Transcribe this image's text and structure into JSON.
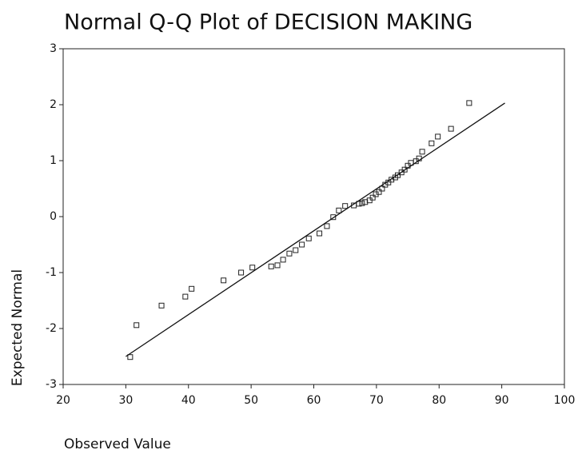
{
  "chart_data": {
    "type": "scatter",
    "title": "Normal Q-Q Plot of DECISION MAKING",
    "x_label": "Observed Value",
    "y_label": "Expected Normal",
    "xlim": [
      20,
      100
    ],
    "xticks": [
      20,
      30,
      40,
      50,
      60,
      70,
      80,
      90,
      100
    ],
    "ylim": [
      -3,
      3
    ],
    "yticks": [
      -3,
      -2,
      -1,
      0,
      1,
      2,
      3
    ],
    "series": [
      {
        "kind": "points",
        "marker": "square",
        "color": "#222",
        "x": [
          30.7,
          31.7,
          35.7,
          39.5,
          40.5,
          45.6,
          48.4,
          50.2,
          53.2,
          54.2,
          55.1,
          56.1,
          57.1,
          58.1,
          59.2,
          60.9,
          62.1,
          63.1,
          64.0,
          65.0,
          66.4,
          67.2,
          67.7,
          68.2,
          68.9,
          69.4,
          69.9,
          70.4,
          70.9,
          71.4,
          71.9,
          72.4,
          73.0,
          73.4,
          74.0,
          74.5,
          75.0,
          75.5,
          76.3,
          76.8,
          77.3,
          78.8,
          79.8,
          81.9,
          84.8
        ],
        "values": [
          -2.51,
          -1.94,
          -1.59,
          -1.43,
          -1.29,
          -1.14,
          -1.0,
          -0.91,
          -0.89,
          -0.87,
          -0.77,
          -0.66,
          -0.6,
          -0.5,
          -0.39,
          -0.3,
          -0.17,
          -0.01,
          0.11,
          0.19,
          0.2,
          0.23,
          0.24,
          0.26,
          0.29,
          0.34,
          0.4,
          0.44,
          0.5,
          0.57,
          0.61,
          0.66,
          0.7,
          0.74,
          0.79,
          0.84,
          0.91,
          0.96,
          0.99,
          1.04,
          1.16,
          1.31,
          1.43,
          1.57,
          2.03
        ]
      },
      {
        "kind": "line",
        "color": "#111",
        "x": [
          30,
          90.5
        ],
        "values": [
          -2.5,
          2.03
        ]
      }
    ]
  }
}
